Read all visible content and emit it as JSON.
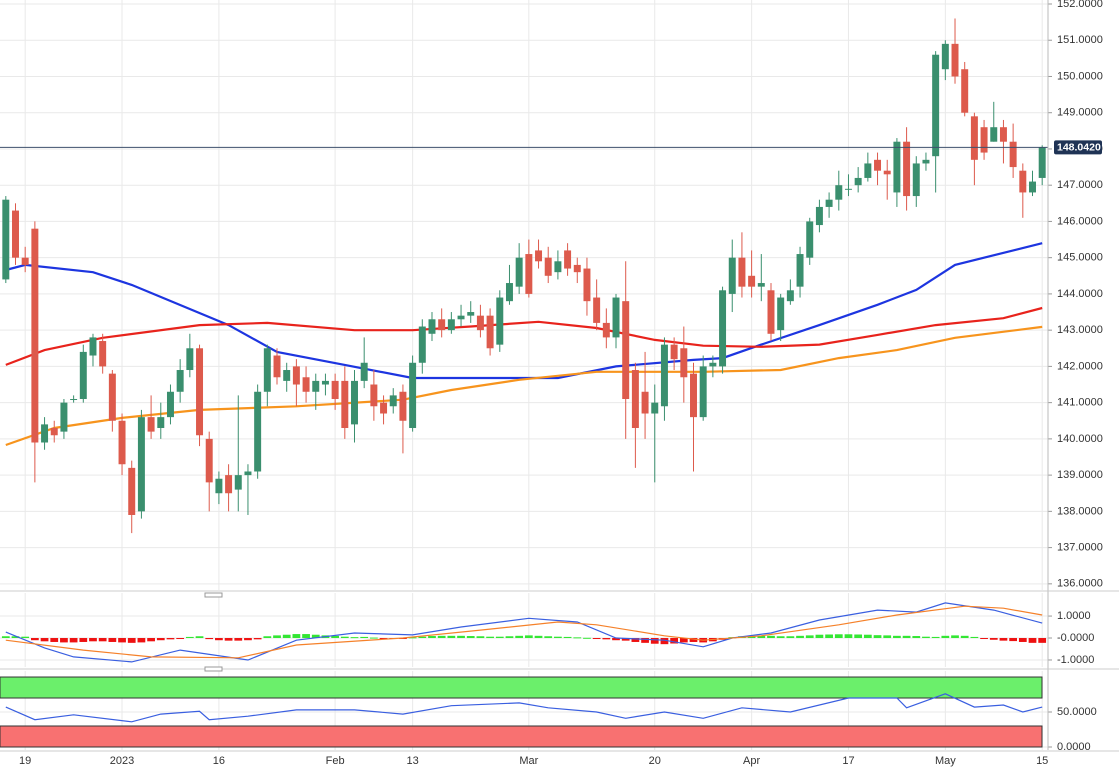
{
  "chart_data": [
    {
      "type": "candlestick",
      "open": [
        144.4,
        146.3,
        145.0,
        145.8,
        139.9,
        140.3,
        140.2,
        141.1,
        141.1,
        142.3,
        142.7,
        141.8,
        140.5,
        139.2,
        138.0,
        140.6,
        140.3,
        140.6,
        141.3,
        141.9,
        142.5,
        140.0,
        138.5,
        139.0,
        138.6,
        139.0,
        139.1,
        141.3,
        142.3,
        141.6,
        142.0,
        141.7,
        141.3,
        141.5,
        141.6,
        141.6,
        140.4,
        141.6,
        141.5,
        141.0,
        140.9,
        141.3,
        140.3,
        142.1,
        142.9,
        143.3,
        143.0,
        143.3,
        143.4,
        143.4,
        143.4,
        142.6,
        143.8,
        144.2,
        145.1,
        145.2,
        145.0,
        144.6,
        145.2,
        144.8,
        144.7,
        143.9,
        143.2,
        142.8,
        143.8,
        141.9,
        141.3,
        140.7,
        140.9,
        142.6,
        142.5,
        141.8,
        140.6,
        142.0,
        142.0,
        144.0,
        145.0,
        144.5,
        144.2,
        144.1,
        143.0,
        143.8,
        144.2,
        145.0,
        145.9,
        146.4,
        146.6,
        146.9,
        147.0,
        147.2,
        147.7,
        147.4,
        146.8,
        148.2,
        146.7,
        147.6,
        147.8,
        150.2,
        150.9,
        150.2,
        148.9,
        148.6,
        148.2,
        148.6,
        148.2,
        147.4,
        146.8,
        147.2
      ],
      "high": [
        146.7,
        146.5,
        145.3,
        146.0,
        140.6,
        140.5,
        141.1,
        141.2,
        142.6,
        142.9,
        142.9,
        141.9,
        140.7,
        139.4,
        140.8,
        141.2,
        141.0,
        141.5,
        142.2,
        142.9,
        142.6,
        140.2,
        139.1,
        139.3,
        141.2,
        139.3,
        141.5,
        142.6,
        142.5,
        142.1,
        142.2,
        142.0,
        141.8,
        141.8,
        141.8,
        142.0,
        141.9,
        142.8,
        141.9,
        141.2,
        141.4,
        141.5,
        142.3,
        143.3,
        143.5,
        143.6,
        143.5,
        143.7,
        143.8,
        143.7,
        143.6,
        144.1,
        144.8,
        145.4,
        145.5,
        145.5,
        145.3,
        145.2,
        145.4,
        145.0,
        145.0,
        144.4,
        143.6,
        144.0,
        144.9,
        142.1,
        142.4,
        141.5,
        142.8,
        142.8,
        143.1,
        142.1,
        142.3,
        142.3,
        144.2,
        145.5,
        145.7,
        145.2,
        145.1,
        144.3,
        144.0,
        144.4,
        145.3,
        146.1,
        146.6,
        146.8,
        147.4,
        147.3,
        147.5,
        147.9,
        147.9,
        147.7,
        148.3,
        148.6,
        147.8,
        147.9,
        150.7,
        151.0,
        151.6,
        150.4,
        149.0,
        148.8,
        149.3,
        148.8,
        148.7,
        147.6,
        147.4,
        148.1
      ],
      "low": [
        144.3,
        144.8,
        144.6,
        138.8,
        139.7,
        139.9,
        140.0,
        141.0,
        141.0,
        142.0,
        141.8,
        140.2,
        139.0,
        137.4,
        137.8,
        140.0,
        140.0,
        140.4,
        141.0,
        141.7,
        139.8,
        138.0,
        138.2,
        138.0,
        138.0,
        137.9,
        138.9,
        140.9,
        141.5,
        141.3,
        140.9,
        141.0,
        140.8,
        141.2,
        140.8,
        140.0,
        139.9,
        141.4,
        140.5,
        140.4,
        140.7,
        139.6,
        140.2,
        141.8,
        142.7,
        142.8,
        142.9,
        143.1,
        143.2,
        142.8,
        142.3,
        142.4,
        143.7,
        144.0,
        143.9,
        144.7,
        144.3,
        144.4,
        144.5,
        144.3,
        143.4,
        143.0,
        142.5,
        142.5,
        140.0,
        139.2,
        140.0,
        138.8,
        140.5,
        141.9,
        141.0,
        139.1,
        140.5,
        141.7,
        141.8,
        143.5,
        143.9,
        143.9,
        143.8,
        142.7,
        142.7,
        143.7,
        143.9,
        144.8,
        145.7,
        146.1,
        146.3,
        146.7,
        146.8,
        147.1,
        147.0,
        146.6,
        146.4,
        146.3,
        146.4,
        147.4,
        146.8,
        149.9,
        149.8,
        148.9,
        147.0,
        147.7,
        148.2,
        147.6,
        147.2,
        146.1,
        146.7,
        147.0
      ],
      "close": [
        146.6,
        145.0,
        144.8,
        139.9,
        140.4,
        140.1,
        141.0,
        141.1,
        142.4,
        142.8,
        142.0,
        140.5,
        139.3,
        137.9,
        140.6,
        140.2,
        140.6,
        141.3,
        141.9,
        142.5,
        140.1,
        138.8,
        138.9,
        138.5,
        139.0,
        139.1,
        141.3,
        142.5,
        141.7,
        141.9,
        141.5,
        141.3,
        141.6,
        141.6,
        141.1,
        140.3,
        141.6,
        142.1,
        140.9,
        140.7,
        141.2,
        140.5,
        142.1,
        143.1,
        143.3,
        143.0,
        143.3,
        143.4,
        143.5,
        143.0,
        142.5,
        143.9,
        144.3,
        145.0,
        144.0,
        144.9,
        144.5,
        144.9,
        144.7,
        144.6,
        143.8,
        143.2,
        142.8,
        143.9,
        141.1,
        140.3,
        140.7,
        141.0,
        142.6,
        142.2,
        141.7,
        140.6,
        142.0,
        142.1,
        144.1,
        145.0,
        144.2,
        144.2,
        144.3,
        142.9,
        143.9,
        144.1,
        145.1,
        146.0,
        146.4,
        146.6,
        147.0,
        146.9,
        147.2,
        147.6,
        147.4,
        147.3,
        148.2,
        146.7,
        147.6,
        147.7,
        150.6,
        150.9,
        150.0,
        149.0,
        147.7,
        147.9,
        148.6,
        148.2,
        147.5,
        146.8,
        147.1,
        148.042
      ],
      "up_color": "#3a8f6e",
      "down_color": "#dd5a4c",
      "lines": [
        {
          "color": "#1d35e0",
          "x": [
            0,
            2,
            9,
            13,
            23,
            28,
            35,
            42,
            52,
            57,
            63,
            71,
            74,
            78,
            84,
            90,
            94,
            98,
            107
          ],
          "values": [
            144.66,
            144.8,
            144.6,
            144.25,
            143.14,
            142.4,
            142.04,
            141.68,
            141.68,
            141.68,
            142.0,
            142.18,
            142.23,
            142.6,
            143.14,
            143.7,
            144.11,
            144.8,
            145.4
          ]
        },
        {
          "color": "#e8231c",
          "x": [
            0,
            4,
            10,
            20,
            27,
            36,
            42,
            48,
            55,
            61,
            67,
            72,
            78,
            84,
            90,
            96,
            103,
            107
          ],
          "values": [
            142.04,
            142.45,
            142.79,
            143.14,
            143.2,
            143.0,
            143.0,
            143.1,
            143.23,
            143.06,
            142.73,
            142.57,
            142.54,
            142.6,
            142.87,
            143.14,
            143.33,
            143.61
          ]
        },
        {
          "color": "#f7941d",
          "x": [
            0,
            5,
            12,
            20,
            30,
            41,
            46,
            53,
            61,
            72,
            80,
            86,
            92,
            98,
            107
          ],
          "values": [
            139.83,
            140.3,
            140.58,
            140.8,
            140.9,
            141.08,
            141.35,
            141.63,
            141.85,
            141.85,
            141.9,
            142.23,
            142.45,
            142.79,
            143.09
          ]
        }
      ],
      "last_price": {
        "value": 148.042,
        "label": "148.0420"
      },
      "xlim": [
        -0.6,
        107.6
      ],
      "xticks": [
        {
          "value": 2,
          "label": "19"
        },
        {
          "value": 12,
          "label": "2023"
        },
        {
          "value": 22,
          "label": "16"
        },
        {
          "value": 34,
          "label": "Feb"
        },
        {
          "value": 42,
          "label": "13"
        },
        {
          "value": 54,
          "label": "Mar"
        },
        {
          "value": 67,
          "label": "20"
        },
        {
          "value": 77,
          "label": "Apr"
        },
        {
          "value": 87,
          "label": "17"
        },
        {
          "value": 97,
          "label": "May"
        },
        {
          "value": 107,
          "label": "15"
        }
      ],
      "ylim": [
        135.83,
        152.11
      ],
      "yticks": [
        {
          "value": 136,
          "label": "136.0000"
        },
        {
          "value": 137,
          "label": "137.0000"
        },
        {
          "value": 138,
          "label": "138.0000"
        },
        {
          "value": 139,
          "label": "139.0000"
        },
        {
          "value": 140,
          "label": "140.0000"
        },
        {
          "value": 141,
          "label": "141.0000"
        },
        {
          "value": 142,
          "label": "142.0000"
        },
        {
          "value": 143,
          "label": "143.0000"
        },
        {
          "value": 144,
          "label": "144.0000"
        },
        {
          "value": 145,
          "label": "145.0000"
        },
        {
          "value": 146,
          "label": "146.0000"
        },
        {
          "value": 147,
          "label": "147.0000"
        },
        {
          "value": 148,
          "label": "148.0000"
        },
        {
          "value": 149,
          "label": "149.0000"
        },
        {
          "value": 150,
          "label": "150.0000"
        },
        {
          "value": 151,
          "label": "151.0000"
        },
        {
          "value": 152,
          "label": "152.0000"
        }
      ]
    },
    {
      "type": "macd",
      "histogram": [
        0.08,
        0.08,
        0.06,
        -0.1,
        -0.15,
        -0.18,
        -0.2,
        -0.2,
        -0.18,
        -0.15,
        -0.15,
        -0.18,
        -0.2,
        -0.22,
        -0.2,
        -0.15,
        -0.1,
        -0.06,
        -0.03,
        0.05,
        0.08,
        -0.05,
        -0.1,
        -0.12,
        -0.12,
        -0.1,
        -0.06,
        0.08,
        0.12,
        0.15,
        0.18,
        0.18,
        0.15,
        0.12,
        0.1,
        0.06,
        0.04,
        0.05,
        0.02,
        -0.03,
        -0.04,
        -0.02,
        0.03,
        0.06,
        0.09,
        0.1,
        0.1,
        0.1,
        0.09,
        0.08,
        0.06,
        0.06,
        0.08,
        0.1,
        0.12,
        0.1,
        0.08,
        0.06,
        0.05,
        0.03,
        0.01,
        -0.02,
        -0.06,
        -0.1,
        -0.12,
        -0.18,
        -0.22,
        -0.26,
        -0.28,
        -0.25,
        -0.2,
        -0.18,
        -0.2,
        -0.15,
        -0.08,
        0.04,
        0.08,
        0.1,
        0.1,
        0.1,
        0.08,
        0.08,
        0.1,
        0.12,
        0.15,
        0.16,
        0.17,
        0.17,
        0.16,
        0.15,
        0.13,
        0.12,
        0.1,
        0.1,
        0.09,
        0.06,
        0.05,
        0.1,
        0.12,
        0.1,
        0.05,
        -0.04,
        -0.08,
        -0.12,
        -0.14,
        -0.18,
        -0.22,
        -0.22
      ],
      "up_color": "#33e633",
      "down_color": "#ee1111",
      "lines": [
        {
          "color": "#3a5fe0",
          "x": [
            0,
            4,
            7,
            13,
            18,
            25,
            30,
            36,
            42,
            47,
            54,
            59,
            63,
            68,
            72,
            75,
            79,
            84,
            90,
            94,
            97,
            102,
            107
          ],
          "values": [
            0.27,
            -0.45,
            -0.86,
            -1.09,
            -0.55,
            -1.0,
            -0.1,
            0.23,
            0.14,
            0.5,
            0.9,
            0.73,
            0,
            -0.1,
            -0.4,
            0,
            0.23,
            0.82,
            1.27,
            1.18,
            1.6,
            1.27,
            0.68
          ]
        },
        {
          "color": "#f5812a",
          "x": [
            0,
            8,
            15,
            24,
            30,
            41,
            49,
            57,
            61,
            68,
            72,
            78,
            86,
            92,
            99,
            103,
            107
          ],
          "values": [
            -0.1,
            -0.55,
            -0.86,
            -0.9,
            -0.32,
            0,
            0.36,
            0.73,
            0.6,
            0.1,
            -0.1,
            0.1,
            0.6,
            1.05,
            1.45,
            1.36,
            1.05
          ]
        }
      ],
      "ylim": [
        -1.32,
        2.05
      ],
      "yticks": [
        {
          "value": 1,
          "label": "1.0000"
        },
        {
          "value": 0,
          "label": "-0.0000"
        },
        {
          "value": -1,
          "label": "-1.0000"
        }
      ]
    },
    {
      "type": "rsi",
      "bands": [
        {
          "range": [
            70,
            100
          ],
          "color": "#6bef6b"
        },
        {
          "range": [
            0,
            30
          ],
          "color": "#f87171"
        }
      ],
      "lines": [
        {
          "color": "#3a5fe0",
          "x": [
            0,
            3,
            7,
            13,
            16,
            20,
            21,
            25,
            30,
            36,
            41,
            46,
            53,
            56,
            61,
            64,
            68,
            72,
            76,
            81,
            87,
            92,
            93,
            97,
            100,
            103,
            105,
            107
          ],
          "values": [
            57,
            39,
            46,
            36,
            47,
            51,
            39,
            44,
            53,
            53,
            47,
            59,
            63,
            56,
            50,
            41,
            50,
            41,
            56,
            50,
            70,
            70,
            56,
            76,
            57,
            60,
            50,
            57
          ]
        }
      ],
      "ylim": [
        -4.3,
        108.6
      ],
      "yticks": [
        {
          "value": 50,
          "label": "50.0000"
        },
        {
          "value": 0,
          "label": "0.0000"
        }
      ]
    }
  ]
}
